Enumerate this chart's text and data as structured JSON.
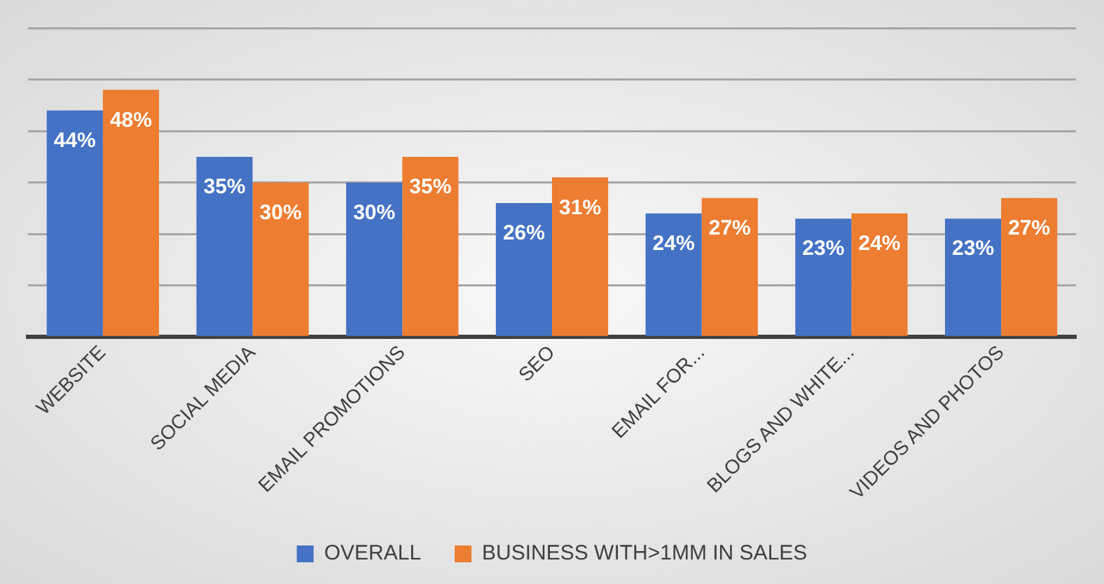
{
  "chart_data": {
    "type": "bar",
    "categories": [
      "WEBSITE",
      "SOCIAL MEDIA",
      "EMAIL PROMOTIONS",
      "SEO",
      "EMAIL FOR...",
      "BLOGS AND WHITE...",
      "VIDEOS AND PHOTOS"
    ],
    "series": [
      {
        "name": "OVERALL",
        "color": "#4472c4",
        "values": [
          44,
          35,
          30,
          26,
          24,
          23,
          23
        ],
        "value_labels": [
          "44%",
          "35%",
          "30%",
          "26%",
          "24%",
          "23%",
          "23%"
        ]
      },
      {
        "name": "BUSINESS WITH>1MM IN SALES",
        "color": "#ed7d31",
        "values": [
          48,
          30,
          35,
          31,
          27,
          24,
          27
        ],
        "value_labels": [
          "48%",
          "30%",
          "35%",
          "31%",
          "27%",
          "24%",
          "27%"
        ]
      }
    ],
    "ylim": [
      0,
      60
    ],
    "yticks": [
      {
        "value": 0,
        "label": null
      },
      {
        "value": 10,
        "label": null
      },
      {
        "value": 20,
        "label": null
      },
      {
        "value": 30,
        "label": null
      },
      {
        "value": 40,
        "label": null
      },
      {
        "value": 50,
        "label": null
      },
      {
        "value": 60,
        "label": null
      }
    ],
    "tick_labels": "x",
    "grid": "y",
    "legend": "bottom"
  }
}
